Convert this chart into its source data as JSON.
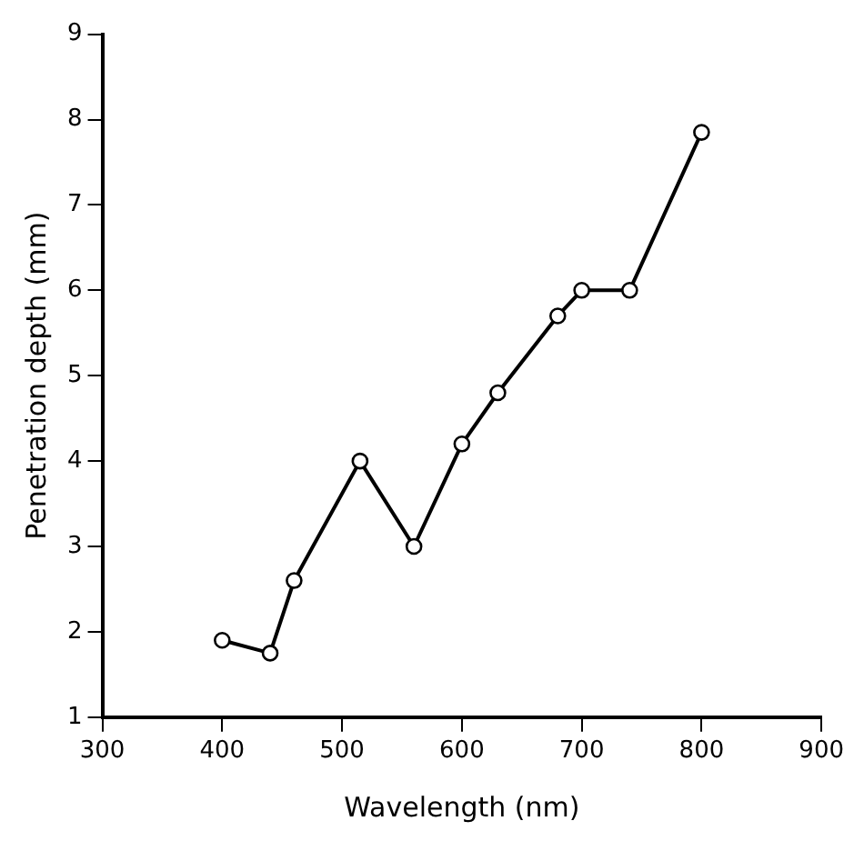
{
  "chart_data": {
    "type": "line",
    "xlabel": "Wavelength (nm)",
    "ylabel": "Penetration depth (mm)",
    "series": [
      {
        "color": "#000000",
        "x": [
          400,
          440,
          460,
          515,
          560,
          600,
          630,
          680,
          700,
          740,
          800
        ],
        "values": [
          1.9,
          1.75,
          2.6,
          4.0,
          3.0,
          4.2,
          4.8,
          5.7,
          6.0,
          6.0,
          7.85
        ]
      }
    ],
    "xlim": [
      300,
      900
    ],
    "xticks": [
      300,
      400,
      500,
      600,
      700,
      800,
      900
    ],
    "ylim": [
      1,
      9
    ],
    "yticks": [
      1,
      2,
      3,
      4,
      5,
      6,
      7,
      8,
      9
    ],
    "grid": false,
    "legend": false,
    "marker": "circle",
    "line_style": "solid"
  }
}
